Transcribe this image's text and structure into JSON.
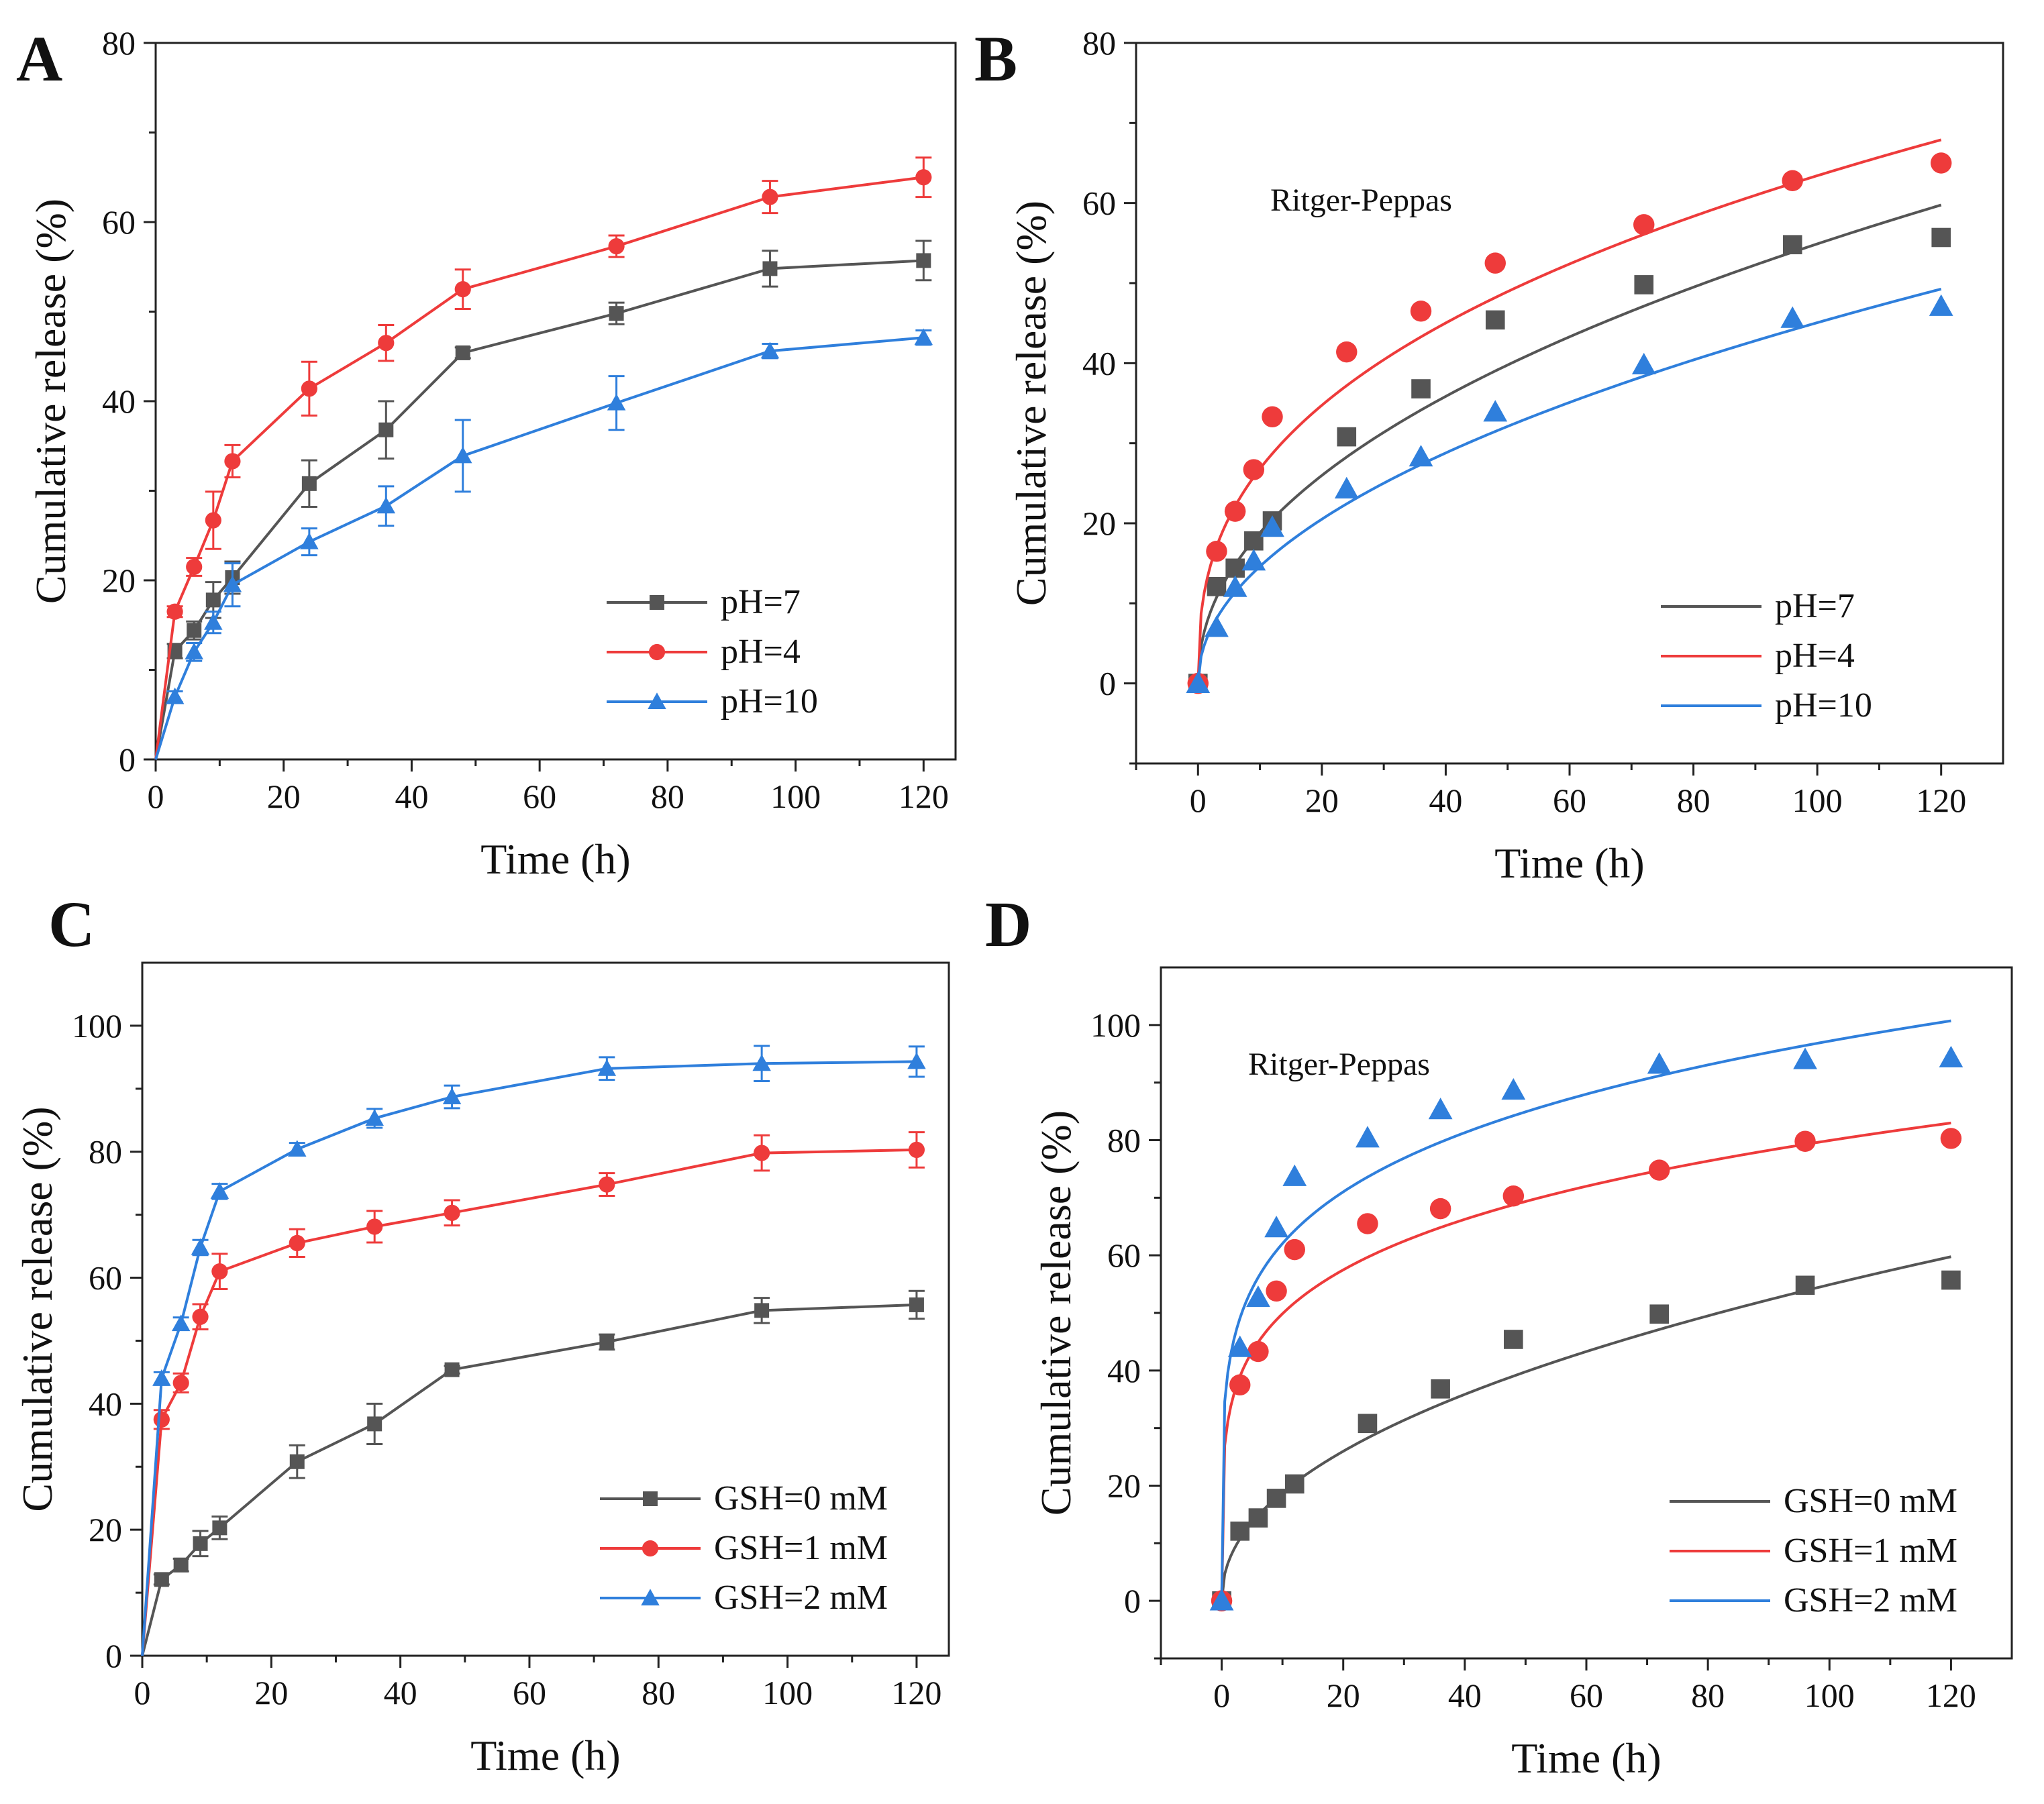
{
  "colors": {
    "pH7": "#555555",
    "pH4": "#ee3b3b",
    "pH10": "#2f7fdc",
    "axis": "#222222"
  },
  "chart_data": [
    {
      "id": "A",
      "type": "line",
      "panel_label": "A",
      "title": "",
      "xlabel": "Time (h)",
      "ylabel": "Cumulative release (%)",
      "xlim": [
        0,
        125
      ],
      "ylim": [
        0,
        80
      ],
      "xticks": [
        0,
        20,
        40,
        60,
        80,
        100,
        120
      ],
      "yticks": [
        0,
        20,
        40,
        60,
        80
      ],
      "annotation": "",
      "legend_position": "bottom-right",
      "x": [
        0,
        3,
        6,
        9,
        12,
        24,
        36,
        48,
        72,
        96,
        120
      ],
      "series": [
        {
          "name": "pH=7",
          "color": "#555555",
          "marker": "square",
          "values": [
            0,
            12.1,
            14.4,
            17.8,
            20.3,
            30.8,
            36.8,
            45.4,
            49.8,
            54.8,
            55.7
          ],
          "errors": [
            0,
            0.8,
            1.0,
            2.0,
            1.8,
            2.6,
            3.2,
            0.6,
            1.2,
            2.0,
            2.2
          ]
        },
        {
          "name": "pH=4",
          "color": "#ee3b3b",
          "marker": "circle",
          "values": [
            0,
            16.5,
            21.5,
            26.7,
            33.3,
            41.4,
            46.5,
            52.5,
            57.3,
            62.8,
            65.0
          ],
          "errors": [
            0,
            0.6,
            1.0,
            3.2,
            1.8,
            3.0,
            2.0,
            2.2,
            1.2,
            1.8,
            2.2
          ]
        },
        {
          "name": "pH=10",
          "color": "#2f7fdc",
          "marker": "triangle",
          "values": [
            0,
            7.0,
            12.0,
            15.3,
            19.5,
            24.3,
            28.3,
            33.9,
            39.8,
            45.6,
            47.1
          ],
          "errors": [
            0,
            0.6,
            1.0,
            1.2,
            2.4,
            1.5,
            2.2,
            4.0,
            3.0,
            0.8,
            0.8
          ]
        }
      ]
    },
    {
      "id": "B",
      "type": "scatter",
      "panel_label": "B",
      "title": "",
      "xlabel": "Time (h)",
      "ylabel": "Cumulative release (%)",
      "xlim": [
        -10,
        130
      ],
      "ylim": [
        -10,
        80
      ],
      "xticks": [
        0,
        20,
        40,
        60,
        80,
        100,
        120
      ],
      "yticks": [
        0,
        20,
        40,
        60,
        80
      ],
      "annotation": "Ritger-Peppas",
      "legend_position": "bottom-right",
      "x": [
        0,
        3,
        6,
        9,
        12,
        24,
        36,
        48,
        72,
        96,
        120
      ],
      "series": [
        {
          "name": "pH=7",
          "color": "#555555",
          "marker": "square",
          "values": [
            0,
            12.1,
            14.4,
            17.8,
            20.3,
            30.8,
            36.8,
            45.4,
            49.8,
            54.8,
            55.7
          ],
          "fit": {
            "k": 6.45,
            "n": 0.465
          }
        },
        {
          "name": "pH=4",
          "color": "#ee3b3b",
          "marker": "circle",
          "values": [
            0,
            16.5,
            21.5,
            26.7,
            33.3,
            41.4,
            46.5,
            52.5,
            57.3,
            62.8,
            65.0
          ],
          "fit": {
            "k": 11.33,
            "n": 0.374
          }
        },
        {
          "name": "pH=10",
          "color": "#2f7fdc",
          "marker": "triangle",
          "values": [
            0,
            7.0,
            12.0,
            15.3,
            19.5,
            24.3,
            28.3,
            33.9,
            39.8,
            45.6,
            47.1
          ],
          "fit": {
            "k": 4.74,
            "n": 0.489
          }
        }
      ]
    },
    {
      "id": "C",
      "type": "line",
      "panel_label": "C",
      "title": "",
      "xlabel": "Time (h)",
      "ylabel": "Cumulative release (%)",
      "xlim": [
        0,
        125
      ],
      "ylim": [
        0,
        110
      ],
      "xticks": [
        0,
        20,
        40,
        60,
        80,
        100,
        120
      ],
      "yticks": [
        0,
        20,
        40,
        60,
        80,
        100
      ],
      "annotation": "",
      "legend_position": "bottom-right",
      "x": [
        0,
        3,
        6,
        9,
        12,
        24,
        36,
        48,
        72,
        96,
        120
      ],
      "series": [
        {
          "name": "GSH=0 mM",
          "color": "#555555",
          "marker": "square",
          "values": [
            0,
            12.1,
            14.4,
            17.8,
            20.3,
            30.8,
            36.8,
            45.4,
            49.8,
            54.8,
            55.7
          ],
          "errors": [
            0,
            0.8,
            1.0,
            2.0,
            1.8,
            2.6,
            3.2,
            0.6,
            1.2,
            2.0,
            2.2
          ]
        },
        {
          "name": "GSH=1 mM",
          "color": "#ee3b3b",
          "marker": "circle",
          "values": [
            0,
            37.5,
            43.3,
            53.8,
            61.0,
            65.5,
            68.1,
            70.3,
            74.8,
            79.8,
            80.3
          ],
          "errors": [
            0,
            1.5,
            1.5,
            2.0,
            2.8,
            2.2,
            2.5,
            2.0,
            1.8,
            2.8,
            2.8
          ]
        },
        {
          "name": "GSH=2 mM",
          "color": "#2f7fdc",
          "marker": "triangle",
          "values": [
            0,
            44.0,
            52.7,
            64.8,
            73.7,
            80.4,
            85.3,
            88.7,
            93.2,
            94.0,
            94.3
          ],
          "errors": [
            0,
            1.0,
            1.0,
            1.2,
            1.2,
            1.0,
            1.5,
            1.8,
            1.8,
            2.8,
            2.4
          ]
        }
      ]
    },
    {
      "id": "D",
      "type": "scatter",
      "panel_label": "D",
      "title": "",
      "xlabel": "Time (h)",
      "ylabel": "Cumulative release (%)",
      "xlim": [
        -10,
        130
      ],
      "ylim": [
        -10,
        110
      ],
      "xticks": [
        0,
        20,
        40,
        60,
        80,
        100,
        120
      ],
      "yticks": [
        0,
        20,
        40,
        60,
        80,
        100
      ],
      "annotation": "Ritger-Peppas",
      "legend_position": "bottom-right",
      "x": [
        0,
        3,
        6,
        9,
        12,
        24,
        36,
        48,
        72,
        96,
        120
      ],
      "series": [
        {
          "name": "GSH=0 mM",
          "color": "#555555",
          "marker": "square",
          "values": [
            0,
            12.1,
            14.4,
            17.8,
            20.3,
            30.8,
            36.8,
            45.4,
            49.8,
            54.8,
            55.7
          ],
          "fit": {
            "k": 6.45,
            "n": 0.465
          }
        },
        {
          "name": "GSH=1 mM",
          "color": "#ee3b3b",
          "marker": "circle",
          "values": [
            0,
            37.5,
            43.3,
            53.8,
            61.0,
            65.5,
            68.1,
            70.3,
            74.8,
            79.8,
            80.3
          ],
          "fit": {
            "k": 31.1,
            "n": 0.205
          }
        },
        {
          "name": "GSH=2 mM",
          "color": "#2f7fdc",
          "marker": "triangle",
          "values": [
            0,
            44.0,
            52.7,
            64.8,
            73.7,
            80.4,
            85.3,
            88.7,
            93.2,
            94.0,
            94.3
          ],
          "fit": {
            "k": 39.6,
            "n": 0.195
          }
        }
      ]
    }
  ]
}
